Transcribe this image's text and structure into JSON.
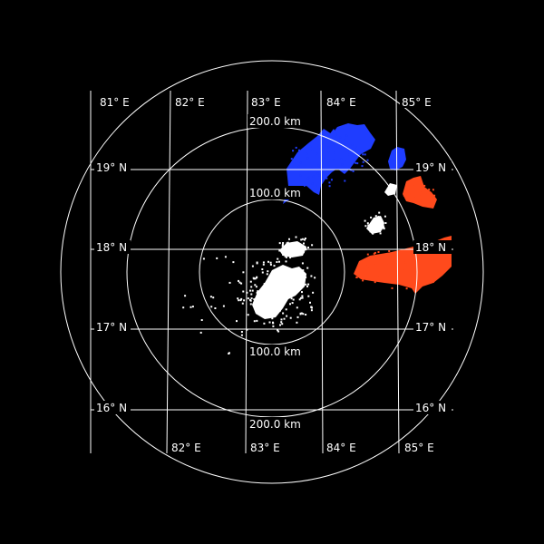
{
  "map": {
    "lon_labels_top": [
      "81° E",
      "82° E",
      "83° E",
      "84° E",
      "85° E"
    ],
    "lon_labels_bottom": [
      "82° E",
      "83° E",
      "84° E",
      "85° E"
    ],
    "lat_labels_left": [
      "19° N",
      "18° N",
      "17° N",
      "16° N"
    ],
    "lat_labels_right": [
      "19° N",
      "18° N",
      "17° N",
      "16° N"
    ],
    "range_labels": {
      "outer_top": "200.0 km",
      "inner_top": "100.0 km",
      "inner_bottom": "100.0 km",
      "outer_bottom": "200.0 km"
    }
  },
  "colors": {
    "background": "#000000",
    "grid": "#ffffff",
    "echo_approaching": "#1f3dff",
    "echo_receding": "#ff4a1c",
    "echo_near_zero": "#ffffff"
  }
}
